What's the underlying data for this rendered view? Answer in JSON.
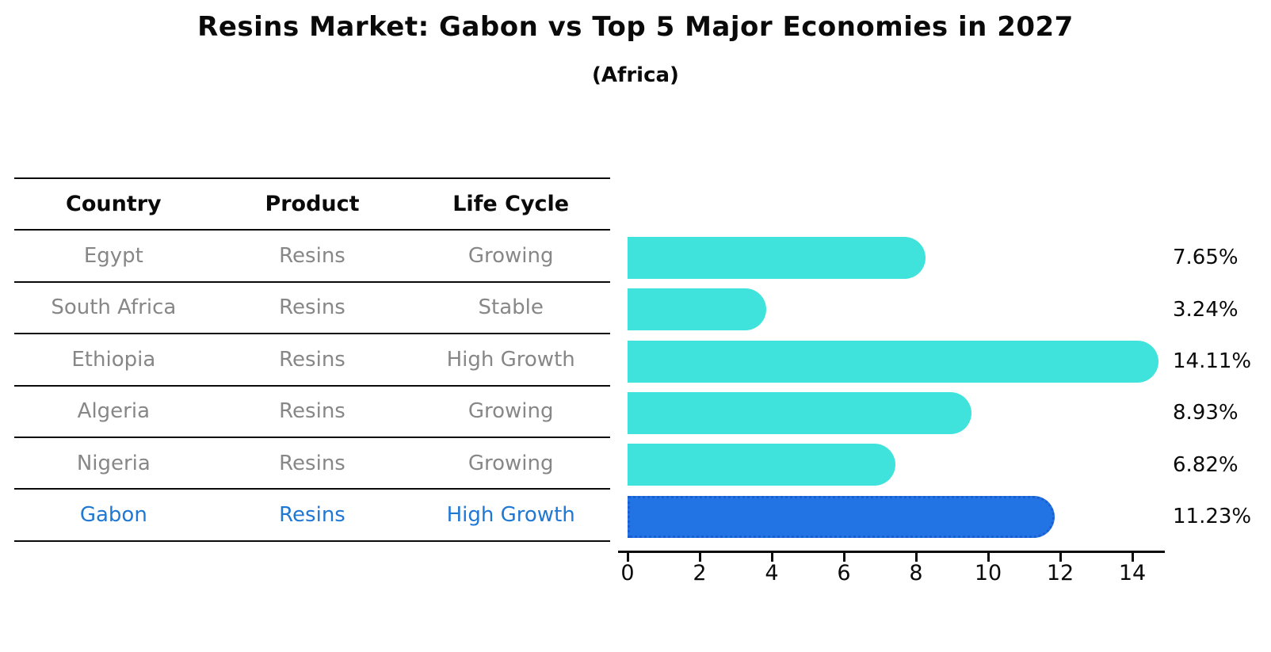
{
  "title": "Resins Market: Gabon vs Top 5 Major Economies in 2027",
  "subtitle": "(Africa)",
  "table": {
    "headers": [
      "Country",
      "Product",
      "Life Cycle"
    ],
    "rows": [
      {
        "country": "Egypt",
        "product": "Resins",
        "life_cycle": "Growing"
      },
      {
        "country": "South Africa",
        "product": "Resins",
        "life_cycle": "Stable"
      },
      {
        "country": "Ethiopia",
        "product": "Resins",
        "life_cycle": "High Growth"
      },
      {
        "country": "Algeria",
        "product": "Resins",
        "life_cycle": "Growing"
      },
      {
        "country": "Nigeria",
        "product": "Resins",
        "life_cycle": "Growing"
      },
      {
        "country": "Gabon",
        "product": "Resins",
        "life_cycle": "High Growth"
      }
    ]
  },
  "chart_data": {
    "type": "bar",
    "orientation": "horizontal",
    "categories": [
      "Egypt",
      "South Africa",
      "Ethiopia",
      "Algeria",
      "Nigeria",
      "Gabon"
    ],
    "values": [
      7.65,
      3.24,
      14.11,
      8.93,
      6.82,
      11.23
    ],
    "value_labels": [
      "7.65%",
      "3.24%",
      "14.11%",
      "8.93%",
      "6.82%",
      "11.23%"
    ],
    "x_ticks": [
      0,
      2,
      4,
      6,
      8,
      10,
      12,
      14
    ],
    "xlim": [
      0,
      15
    ],
    "grid": false,
    "legend": false,
    "highlight_category": "Gabon",
    "bar_color": "#40E2DC",
    "highlight_bar_color": "#2274E4",
    "highlight_border_color": "#1b5ecf",
    "highlight_text_color": "#1f78d4",
    "table_text_color": "#878787",
    "axis_color": "#0a0a0a"
  }
}
